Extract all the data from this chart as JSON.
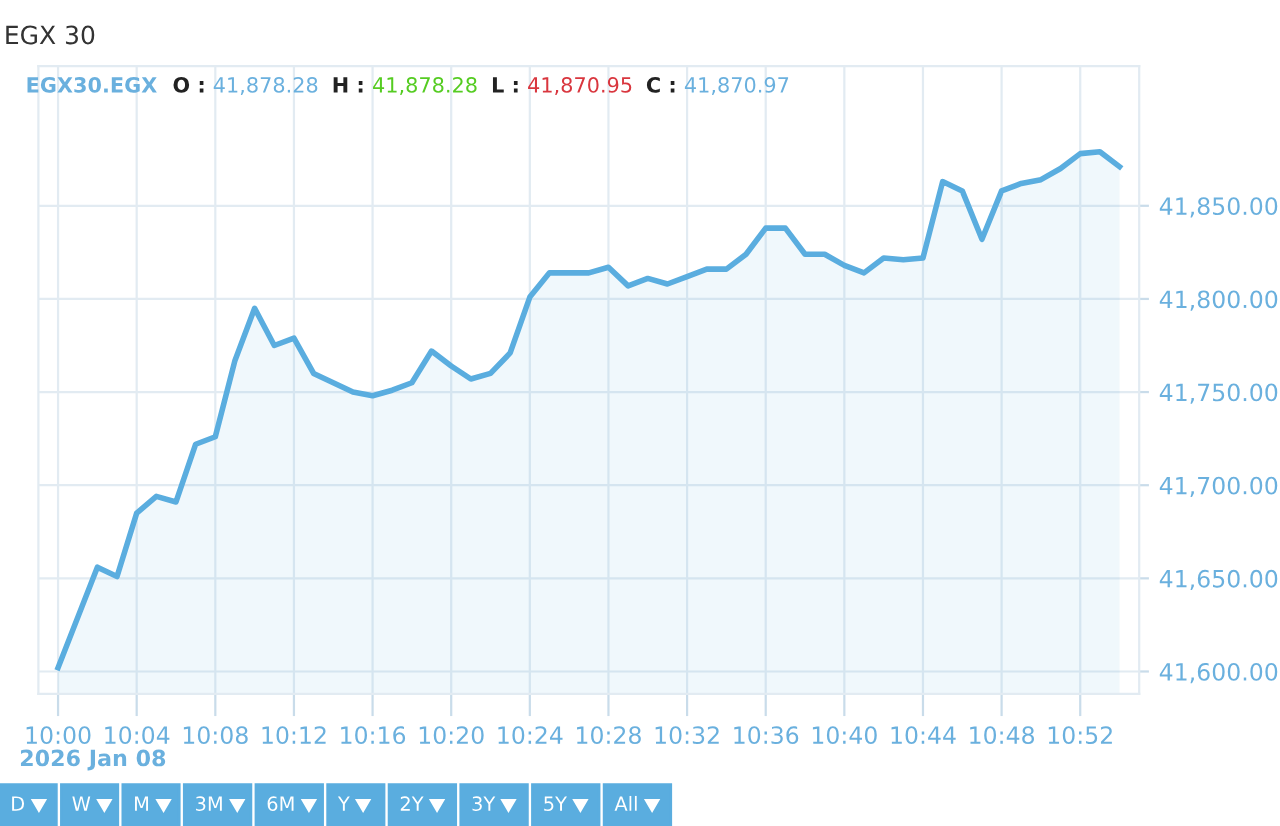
{
  "chart_data": {
    "type": "area",
    "title": "EGX 30",
    "subtitle": "EGX30.EGX",
    "annotations": [
      "O : 41,878.28",
      "H : 41,878.28",
      "L : 41,870.95",
      "C : 41,870.97",
      "2026 Jan 08",
      "D",
      "W",
      "M",
      "3M",
      "6M",
      "Y",
      "2Y",
      "3Y",
      "5Y",
      "All"
    ],
    "x": [
      "2026-01-08T10:00",
      "2026-01-08T10:02",
      "2026-01-08T10:03",
      "2026-01-08T10:04",
      "2026-01-08T10:05",
      "2026-01-08T10:06",
      "2026-01-08T10:07",
      "2026-01-08T10:08",
      "2026-01-08T10:09",
      "2026-01-08T10:10",
      "2026-01-08T10:11",
      "2026-01-08T10:12",
      "2026-01-08T10:13",
      "2026-01-08T10:14",
      "2026-01-08T10:15",
      "2026-01-08T10:16",
      "2026-01-08T10:17",
      "2026-01-08T10:18",
      "2026-01-08T10:19",
      "2026-01-08T10:20",
      "2026-01-08T10:21",
      "2026-01-08T10:22",
      "2026-01-08T10:23",
      "2026-01-08T10:24",
      "2026-01-08T10:25",
      "2026-01-08T10:26",
      "2026-01-08T10:27",
      "2026-01-08T10:28",
      "2026-01-08T10:29",
      "2026-01-08T10:30",
      "2026-01-08T10:31",
      "2026-01-08T10:32",
      "2026-01-08T10:33",
      "2026-01-08T10:34",
      "2026-01-08T10:35",
      "2026-01-08T10:36",
      "2026-01-08T10:37",
      "2026-01-08T10:38",
      "2026-01-08T10:39",
      "2026-01-08T10:40",
      "2026-01-08T10:41",
      "2026-01-08T10:42",
      "2026-01-08T10:43",
      "2026-01-08T10:44",
      "2026-01-08T10:45",
      "2026-01-08T10:46",
      "2026-01-08T10:47",
      "2026-01-08T10:48",
      "2026-01-08T10:49",
      "2026-01-08T10:50",
      "2026-01-08T10:51",
      "2026-01-08T10:52",
      "2026-01-08T10:53",
      "2026-01-08T10:54"
    ],
    "series": [
      {
        "color": "#5aaddf",
        "values": [
          41602,
          41656,
          41651,
          41685,
          41694,
          41691,
          41722,
          41726,
          41767,
          41795,
          41775,
          41779,
          41760,
          41755,
          41750,
          41748,
          41751,
          41755,
          41772,
          41764,
          41757,
          41760,
          41771,
          41801,
          41814,
          41814,
          41814,
          41817,
          41807,
          41811,
          41808,
          41812,
          41816,
          41816,
          41824,
          41838,
          41838,
          41824,
          41824,
          41818,
          41814,
          41822,
          41821,
          41822,
          41863,
          41858,
          41832,
          41858,
          41862,
          41864,
          41870,
          41878,
          41879,
          41871
        ]
      }
    ],
    "xlim": [
      "2026-01-08T09:59",
      "2026-01-08T10:55"
    ],
    "xticks": [
      {
        "value": "2026-01-08T10:00",
        "label": "10:00"
      },
      {
        "value": "2026-01-08T10:04",
        "label": "10:04"
      },
      {
        "value": "2026-01-08T10:08",
        "label": "10:08"
      },
      {
        "value": "2026-01-08T10:12",
        "label": "10:12"
      },
      {
        "value": "2026-01-08T10:16",
        "label": "10:16"
      },
      {
        "value": "2026-01-08T10:20",
        "label": "10:20"
      },
      {
        "value": "2026-01-08T10:24",
        "label": "10:24"
      },
      {
        "value": "2026-01-08T10:28",
        "label": "10:28"
      },
      {
        "value": "2026-01-08T10:32",
        "label": "10:32"
      },
      {
        "value": "2026-01-08T10:36",
        "label": "10:36"
      },
      {
        "value": "2026-01-08T10:40",
        "label": "10:40"
      },
      {
        "value": "2026-01-08T10:44",
        "label": "10:44"
      },
      {
        "value": "2026-01-08T10:48",
        "label": "10:48"
      },
      {
        "value": "2026-01-08T10:52",
        "label": "10:52"
      }
    ],
    "ylim": [
      41588,
      41925
    ],
    "yticks": [
      {
        "value": 41600,
        "label": "41,600.00"
      },
      {
        "value": 41650,
        "label": "41,650.00"
      },
      {
        "value": 41700,
        "label": "41,700.00"
      },
      {
        "value": 41750,
        "label": "41,750.00"
      },
      {
        "value": 41800,
        "label": "41,800.00"
      },
      {
        "value": 41850,
        "label": "41,850.00"
      }
    ],
    "grid": true,
    "marker": "none",
    "line_style": "solid"
  }
}
